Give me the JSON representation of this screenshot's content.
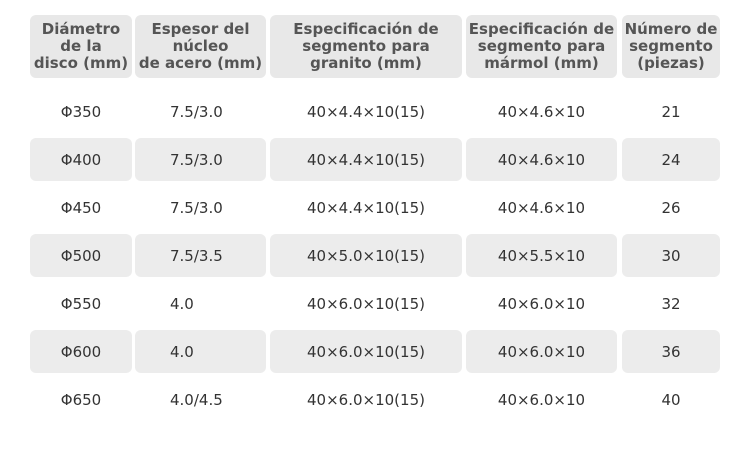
{
  "table": {
    "header": [
      [
        "Diámetro",
        "de la",
        "disco (mm)"
      ],
      [
        "Espesor del",
        "núcleo",
        "de acero (mm)"
      ],
      [
        "Especificación de",
        "segmento para",
        "granito (mm)"
      ],
      [
        "Especificación de",
        "segmento para",
        "mármol (mm)"
      ],
      [
        "Número de",
        "segmento",
        "(piezas)"
      ]
    ],
    "rows": [
      [
        "Φ350",
        "7.5/3.0",
        "40×4.4×10(15)",
        "40×4.6×10",
        "21"
      ],
      [
        "Φ400",
        "7.5/3.0",
        "40×4.4×10(15)",
        "40×4.6×10",
        "24"
      ],
      [
        "Φ450",
        "7.5/3.0",
        "40×4.4×10(15)",
        "40×4.6×10",
        "26"
      ],
      [
        "Φ500",
        "7.5/3.5",
        "40×5.0×10(15)",
        "40×5.5×10",
        "30"
      ],
      [
        "Φ550",
        "4.0",
        "40×6.0×10(15)",
        "40×6.0×10",
        "32"
      ],
      [
        "Φ600",
        "4.0",
        "40×6.0×10(15)",
        "40×6.0×10",
        "36"
      ],
      [
        "Φ650",
        "4.0/4.5",
        "40×6.0×10(15)",
        "40×6.0×10",
        "40"
      ]
    ]
  }
}
